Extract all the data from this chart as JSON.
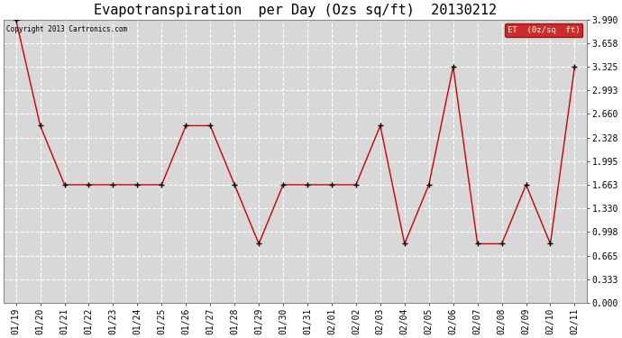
{
  "title": "Evapotranspiration  per Day (Ozs sq/ft)  20130212",
  "copyright": "Copyright 2013 Cartronics.com",
  "legend_label": "ET  (0z/sq  ft)",
  "dates": [
    "01/19",
    "01/20",
    "01/21",
    "01/22",
    "01/23",
    "01/24",
    "01/25",
    "01/26",
    "01/27",
    "01/28",
    "01/29",
    "01/30",
    "01/31",
    "02/01",
    "02/02",
    "02/03",
    "02/04",
    "02/05",
    "02/06",
    "02/07",
    "02/08",
    "02/09",
    "02/10",
    "02/11"
  ],
  "values": [
    3.99,
    2.495,
    1.663,
    1.663,
    1.663,
    1.663,
    1.663,
    2.495,
    2.495,
    1.663,
    0.831,
    1.663,
    1.663,
    1.663,
    1.663,
    2.495,
    0.831,
    1.663,
    3.325,
    0.831,
    0.831,
    1.663,
    0.831,
    3.325
  ],
  "ylim": [
    0.0,
    3.99
  ],
  "yticks": [
    0.0,
    0.333,
    0.665,
    0.998,
    1.33,
    1.663,
    1.995,
    2.328,
    2.66,
    2.993,
    3.325,
    3.658,
    3.99
  ],
  "line_color": "#cc0000",
  "marker_color": "#000000",
  "background_color": "#ffffff",
  "plot_bg_color": "#d8d8d8",
  "grid_color": "#ffffff",
  "title_fontsize": 11,
  "tick_fontsize": 7,
  "legend_bg": "#cc0000",
  "legend_text_color": "#ffffff",
  "figwidth": 6.9,
  "figheight": 3.75,
  "dpi": 100
}
